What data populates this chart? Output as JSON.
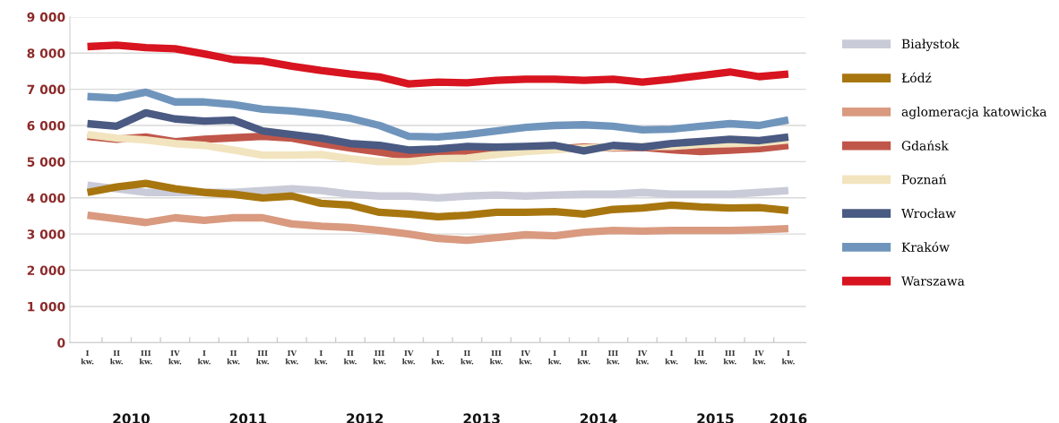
{
  "chart_data": {
    "type": "line",
    "categories": [
      "I\nkw.",
      "II\nkw.",
      "III\nkw.",
      "IV\nkw.",
      "I\nkw.",
      "II\nkw.",
      "III\nkw.",
      "IV\nkw.",
      "I\nkw.",
      "II\nkw.",
      "III\nkw.",
      "IV\nkw.",
      "I\nkw.",
      "II\nkw.",
      "III\nkw.",
      "IV\nkw.",
      "I\nkw.",
      "II\nkw.",
      "III\nkw.",
      "IV\nkw.",
      "I\nkw.",
      "II\nkw.",
      "III\nkw.",
      "IV\nkw.",
      "I\nkw."
    ],
    "series": [
      {
        "name": "Białystok",
        "color": "#c9cbd8",
        "values": [
          4350,
          4250,
          4150,
          4150,
          4150,
          4150,
          4200,
          4250,
          4200,
          4100,
          4050,
          4050,
          4000,
          4050,
          4080,
          4050,
          4080,
          4100,
          4100,
          4150,
          4100,
          4100,
          4100,
          4150,
          4200
        ]
      },
      {
        "name": "Łódź",
        "color": "#a8760f",
        "values": [
          4150,
          4300,
          4400,
          4250,
          4150,
          4100,
          4000,
          4050,
          3850,
          3800,
          3600,
          3550,
          3480,
          3520,
          3600,
          3600,
          3620,
          3550,
          3680,
          3720,
          3800,
          3750,
          3720,
          3730,
          3650
        ]
      },
      {
        "name": "aglomeracja katowicka",
        "color": "#d99a80",
        "values": [
          3520,
          3420,
          3320,
          3450,
          3380,
          3450,
          3450,
          3280,
          3220,
          3180,
          3100,
          3000,
          2880,
          2830,
          2900,
          2980,
          2950,
          3050,
          3100,
          3080,
          3100,
          3100,
          3100,
          3120,
          3150
        ]
      },
      {
        "name": "Gdańsk",
        "color": "#c0564a",
        "values": [
          5700,
          5620,
          5680,
          5550,
          5620,
          5660,
          5700,
          5650,
          5500,
          5380,
          5270,
          5150,
          5200,
          5250,
          5300,
          5320,
          5350,
          5400,
          5380,
          5400,
          5330,
          5280,
          5320,
          5360,
          5450
        ]
      },
      {
        "name": "Poznań",
        "color": "#f2e4bf",
        "values": [
          5750,
          5650,
          5600,
          5500,
          5450,
          5320,
          5180,
          5180,
          5200,
          5080,
          5000,
          5000,
          5080,
          5100,
          5200,
          5280,
          5330,
          5380,
          5400,
          5420,
          5420,
          5480,
          5500,
          5520,
          5600
        ]
      },
      {
        "name": "Wrocław",
        "color": "#4a5a82",
        "values": [
          6050,
          5980,
          6350,
          6180,
          6120,
          6150,
          5850,
          5750,
          5650,
          5500,
          5450,
          5320,
          5350,
          5420,
          5400,
          5420,
          5450,
          5300,
          5450,
          5400,
          5500,
          5560,
          5620,
          5580,
          5680
        ]
      },
      {
        "name": "Kraków",
        "color": "#7095bc",
        "values": [
          6800,
          6760,
          6920,
          6650,
          6650,
          6580,
          6450,
          6400,
          6320,
          6200,
          6000,
          5700,
          5680,
          5750,
          5850,
          5950,
          6000,
          6020,
          5980,
          5880,
          5900,
          5980,
          6050,
          6000,
          6150
        ]
      },
      {
        "name": "Warszawa",
        "color": "#d7141f",
        "values": [
          8180,
          8220,
          8150,
          8120,
          7980,
          7820,
          7780,
          7640,
          7520,
          7420,
          7340,
          7150,
          7200,
          7180,
          7250,
          7280,
          7280,
          7250,
          7280,
          7200,
          7280,
          7380,
          7480,
          7350,
          7420
        ]
      }
    ],
    "ylim": [
      0,
      9000
    ],
    "yticks": [
      0,
      {
        "value": 1000,
        "label": "1 000"
      },
      {
        "value": 2000,
        "label": "2 000"
      },
      {
        "value": 3000,
        "label": "3 000"
      },
      {
        "value": 4000,
        "label": "4 000"
      },
      {
        "value": 5000,
        "label": "5 000"
      },
      {
        "value": 6000,
        "label": "6 000"
      },
      {
        "value": 7000,
        "label": "7 000"
      },
      {
        "value": 8000,
        "label": "8 000"
      },
      {
        "value": 9000,
        "label": "9 000"
      }
    ],
    "annotations": [
      "2010",
      "2011",
      "2012",
      "2013",
      "2014",
      "2015",
      "2016"
    ],
    "grid": "y",
    "legend": "right",
    "marker": "none",
    "line_style": "solid"
  }
}
